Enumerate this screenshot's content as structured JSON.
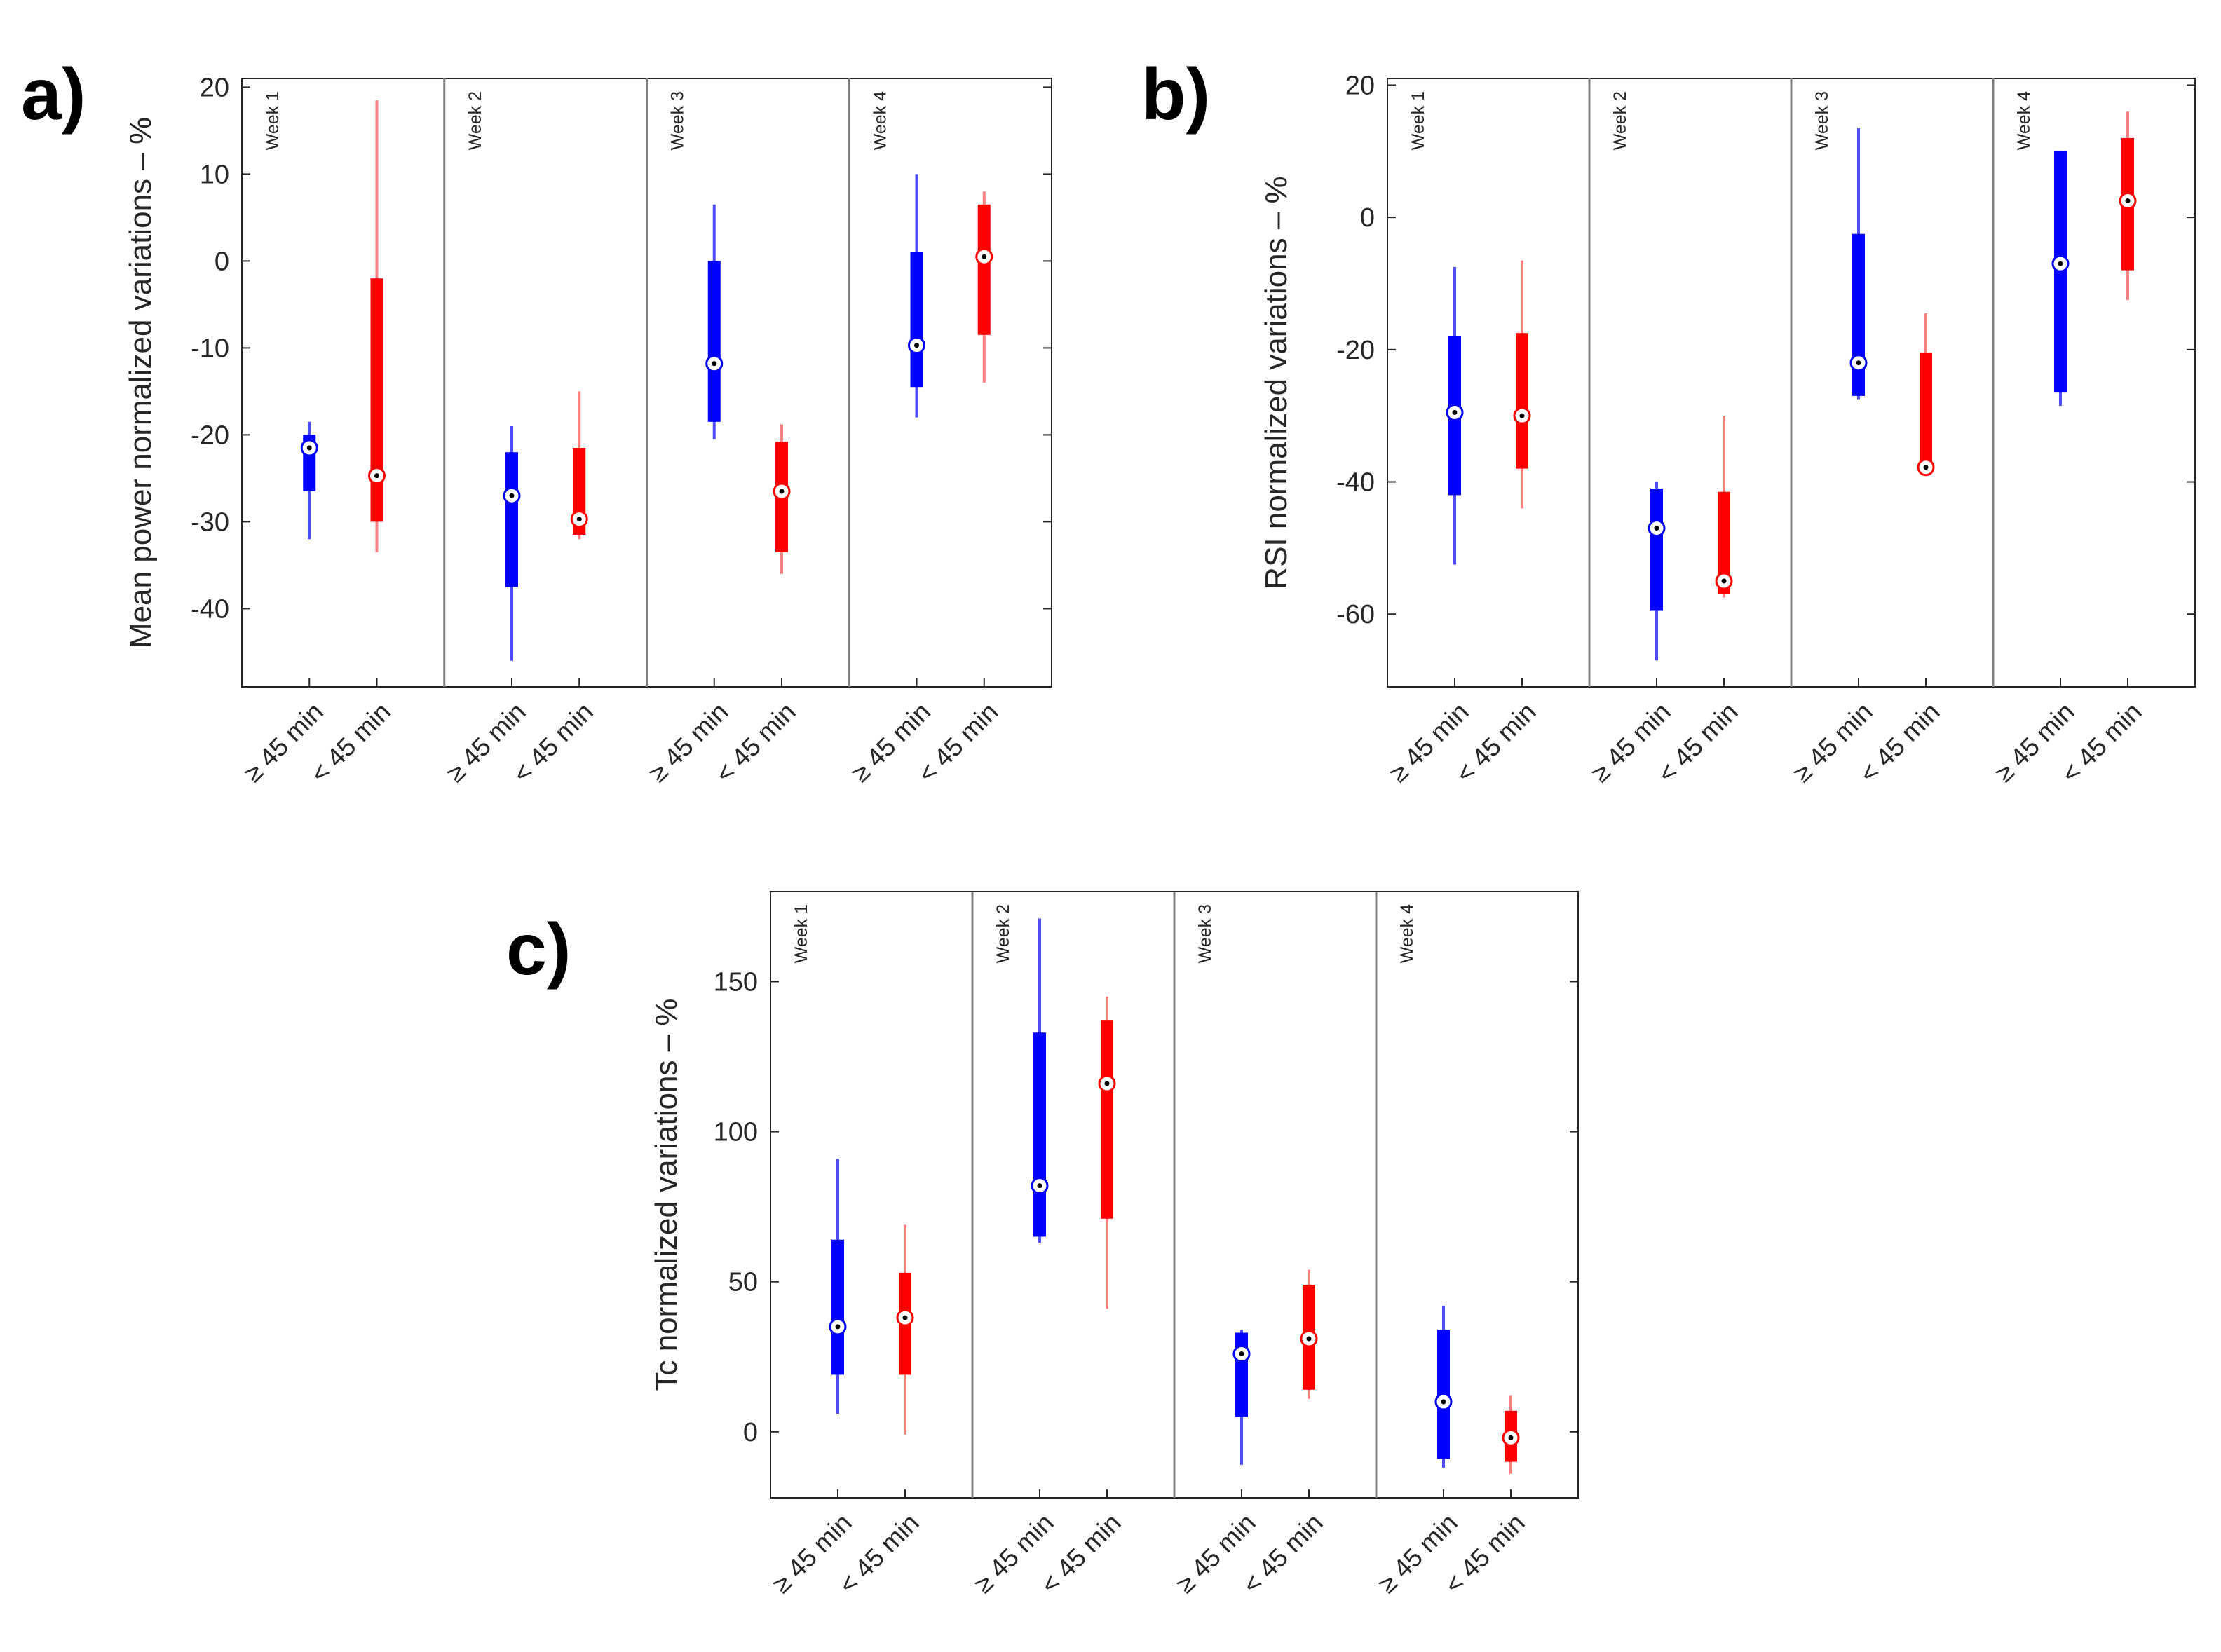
{
  "colors": {
    "ge45": "#0000ff",
    "lt45": "#ff0000",
    "lt45_whisker": "#ff8080",
    "ge45_whisker": "#4d4dff",
    "axis": "#262626",
    "divider": "#808080"
  },
  "chart_data": [
    {
      "id": "a",
      "type": "box",
      "panel_label": "a)",
      "ylabel": "Mean power normalized variations – %",
      "ylim": [
        -49,
        21
      ],
      "yticks": [
        20,
        10,
        0,
        -10,
        -20,
        -30,
        -40
      ],
      "groups": [
        "Week 1",
        "Week 2",
        "Week 3",
        "Week 4"
      ],
      "categories": [
        "≥ 45 min",
        "< 45 min"
      ],
      "series": [
        {
          "name": "≥ 45 min",
          "boxes": [
            {
              "group": "Week 1",
              "whisker_low": -32,
              "q1": -26.5,
              "median": -21.5,
              "q3": -20,
              "whisker_high": -18.5
            },
            {
              "group": "Week 2",
              "whisker_low": -46,
              "q1": -37.5,
              "median": -27,
              "q3": -22,
              "whisker_high": -19
            },
            {
              "group": "Week 3",
              "whisker_low": -20.5,
              "q1": -18.5,
              "median": -11.8,
              "q3": 0,
              "whisker_high": 6.5
            },
            {
              "group": "Week 4",
              "whisker_low": -18,
              "q1": -14.5,
              "median": -9.7,
              "q3": 1,
              "whisker_high": 10
            }
          ]
        },
        {
          "name": "< 45 min",
          "boxes": [
            {
              "group": "Week 1",
              "whisker_low": -33.5,
              "q1": -30,
              "median": -24.7,
              "q3": -2,
              "whisker_high": 18.5
            },
            {
              "group": "Week 2",
              "whisker_low": -32,
              "q1": -31.5,
              "median": -29.7,
              "q3": -21.5,
              "whisker_high": -15
            },
            {
              "group": "Week 3",
              "whisker_low": -36,
              "q1": -33.5,
              "median": -26.5,
              "q3": -20.8,
              "whisker_high": -18.8
            },
            {
              "group": "Week 4",
              "whisker_low": -14,
              "q1": -8.5,
              "median": 0.5,
              "q3": 6.5,
              "whisker_high": 8
            }
          ]
        }
      ]
    },
    {
      "id": "b",
      "type": "box",
      "panel_label": "b)",
      "ylabel": "RSI normalized variations – %",
      "ylim": [
        -71,
        21
      ],
      "yticks": [
        20,
        0,
        -20,
        -40,
        -60
      ],
      "groups": [
        "Week 1",
        "Week 2",
        "Week 3",
        "Week 4"
      ],
      "categories": [
        "≥ 45 min",
        "< 45 min"
      ],
      "series": [
        {
          "name": "≥ 45 min",
          "boxes": [
            {
              "group": "Week 1",
              "whisker_low": -52.5,
              "q1": -42,
              "median": -29.5,
              "q3": -18,
              "whisker_high": -7.5
            },
            {
              "group": "Week 2",
              "whisker_low": -67,
              "q1": -59.5,
              "median": -47,
              "q3": -41,
              "whisker_high": -40
            },
            {
              "group": "Week 3",
              "whisker_low": -27.5,
              "q1": -27,
              "median": -22,
              "q3": -2.5,
              "whisker_high": 13.5
            },
            {
              "group": "Week 4",
              "whisker_low": -28.5,
              "q1": -26.5,
              "median": -7,
              "q3": 10,
              "whisker_high": 10
            }
          ]
        },
        {
          "name": "< 45 min",
          "boxes": [
            {
              "group": "Week 1",
              "whisker_low": -44,
              "q1": -38,
              "median": -30,
              "q3": -17.5,
              "whisker_high": -6.5
            },
            {
              "group": "Week 2",
              "whisker_low": -57.5,
              "q1": -57,
              "median": -55,
              "q3": -41.5,
              "whisker_high": -30
            },
            {
              "group": "Week 3",
              "whisker_low": -38,
              "q1": -38,
              "median": -37.8,
              "q3": -20.5,
              "whisker_high": -14.5
            },
            {
              "group": "Week 4",
              "whisker_low": -12.5,
              "q1": -8,
              "median": 2.5,
              "q3": 12,
              "whisker_high": 16
            }
          ]
        }
      ]
    },
    {
      "id": "c",
      "type": "box",
      "panel_label": "c)",
      "ylabel": "Tc normalized variations – %",
      "ylim": [
        -22,
        180
      ],
      "yticks": [
        150,
        100,
        50,
        0
      ],
      "groups": [
        "Week 1",
        "Week 2",
        "Week 3",
        "Week 4"
      ],
      "categories": [
        "≥ 45 min",
        "< 45 min"
      ],
      "series": [
        {
          "name": "≥ 45 min",
          "boxes": [
            {
              "group": "Week 1",
              "whisker_low": 6,
              "q1": 19,
              "median": 35,
              "q3": 64,
              "whisker_high": 91
            },
            {
              "group": "Week 2",
              "whisker_low": 63,
              "q1": 65,
              "median": 82,
              "q3": 133,
              "whisker_high": 171
            },
            {
              "group": "Week 3",
              "whisker_low": -11,
              "q1": 5,
              "median": 26,
              "q3": 33,
              "whisker_high": 34
            },
            {
              "group": "Week 4",
              "whisker_low": -12,
              "q1": -9,
              "median": 10,
              "q3": 34,
              "whisker_high": 42
            }
          ]
        },
        {
          "name": "< 45 min",
          "boxes": [
            {
              "group": "Week 1",
              "whisker_low": -1,
              "q1": 19,
              "median": 38,
              "q3": 53,
              "whisker_high": 69
            },
            {
              "group": "Week 2",
              "whisker_low": 41,
              "q1": 71,
              "median": 116,
              "q3": 137,
              "whisker_high": 145
            },
            {
              "group": "Week 3",
              "whisker_low": 11,
              "q1": 14,
              "median": 31,
              "q3": 49,
              "whisker_high": 54
            },
            {
              "group": "Week 4",
              "whisker_low": -14,
              "q1": -10,
              "median": -2,
              "q3": 7,
              "whisker_high": 12
            }
          ]
        }
      ]
    }
  ]
}
